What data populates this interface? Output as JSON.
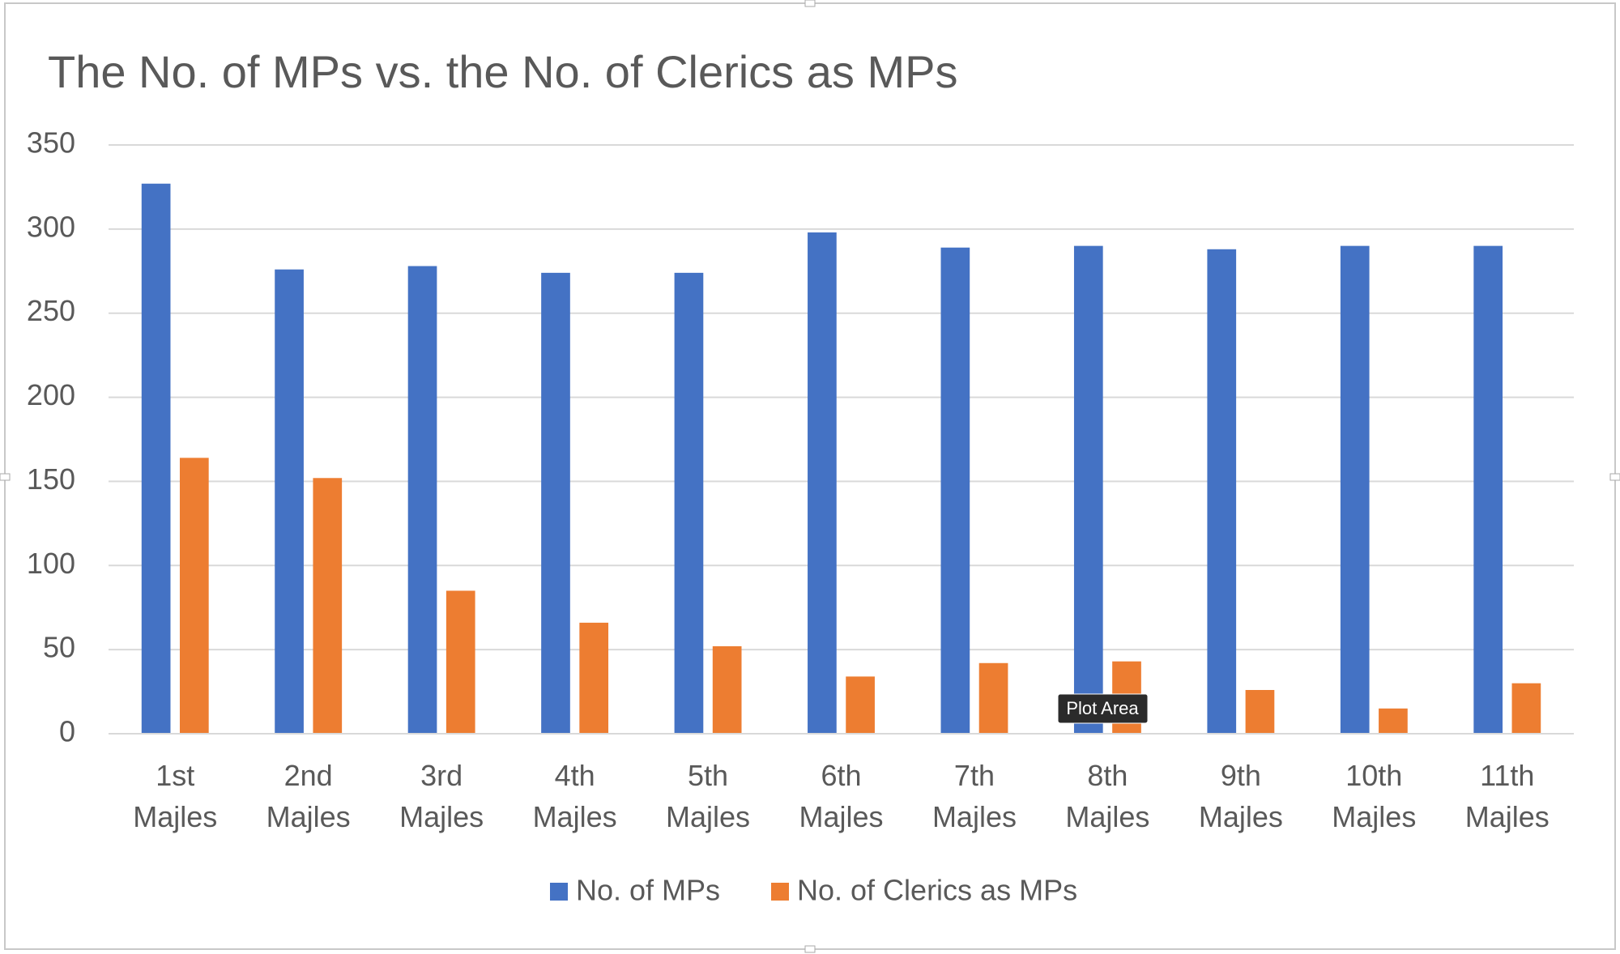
{
  "chart_data": {
    "type": "bar",
    "title": "The No. of MPs vs. the No. of Clerics as MPs",
    "categories": [
      "1st Majles",
      "2nd Majles",
      "3rd Majles",
      "4th Majles",
      "5th Majles",
      "6th Majles",
      "7th Majles",
      "8th Majles",
      "9th Majles",
      "10th Majles",
      "11th Majles"
    ],
    "series": [
      {
        "name": "No. of MPs",
        "color": "#4472c4",
        "values": [
          327,
          276,
          278,
          274,
          274,
          298,
          289,
          290,
          288,
          290,
          290
        ]
      },
      {
        "name": "No. of Clerics as MPs",
        "color": "#ed7d31",
        "values": [
          164,
          152,
          85,
          66,
          52,
          34,
          42,
          43,
          26,
          15,
          30
        ]
      }
    ],
    "ylim": [
      0,
      350
    ],
    "yticks": [
      0,
      50,
      100,
      150,
      200,
      250,
      300,
      350
    ],
    "grid": true,
    "legend": "bottom"
  },
  "tooltip": "Plot Area"
}
